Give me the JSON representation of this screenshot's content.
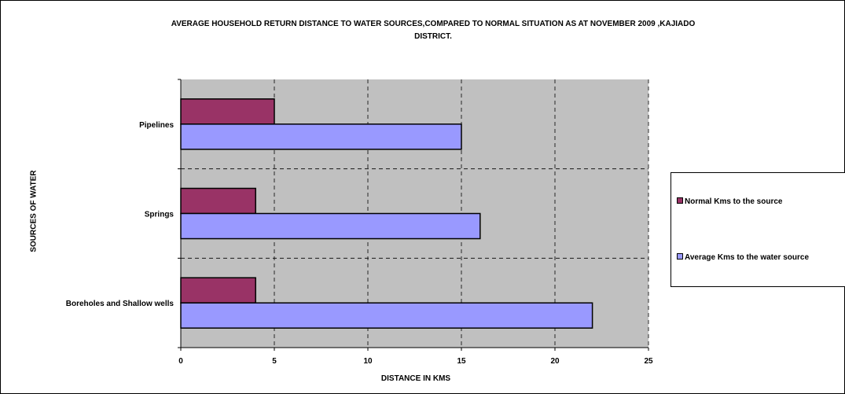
{
  "chart_data": {
    "type": "bar",
    "orientation": "horizontal",
    "title_lines": [
      "AVERAGE HOUSEHOLD RETURN DISTANCE TO WATER SOURCES,COMPARED TO NORMAL SITUATION AS AT NOVEMBER 2009 ,KAJIADO",
      "DISTRICT."
    ],
    "xlabel": "DISTANCE IN KMS",
    "ylabel": "SOURCES OF WATER",
    "categories": [
      "Pipelines",
      "Springs",
      "Boreholes and Shallow wells"
    ],
    "series": [
      {
        "name": "Normal Kms to the source",
        "color": "#993366",
        "values": [
          5,
          4,
          4
        ]
      },
      {
        "name": "Average Kms to the water source",
        "color": "#9999ff",
        "values": [
          15,
          16,
          22
        ]
      }
    ],
    "xlim": [
      0,
      25
    ],
    "xticks": [
      0,
      5,
      10,
      15,
      20,
      25
    ],
    "plot_background": "#c0c0c0",
    "grid": "dashed",
    "legend_position": "right"
  }
}
